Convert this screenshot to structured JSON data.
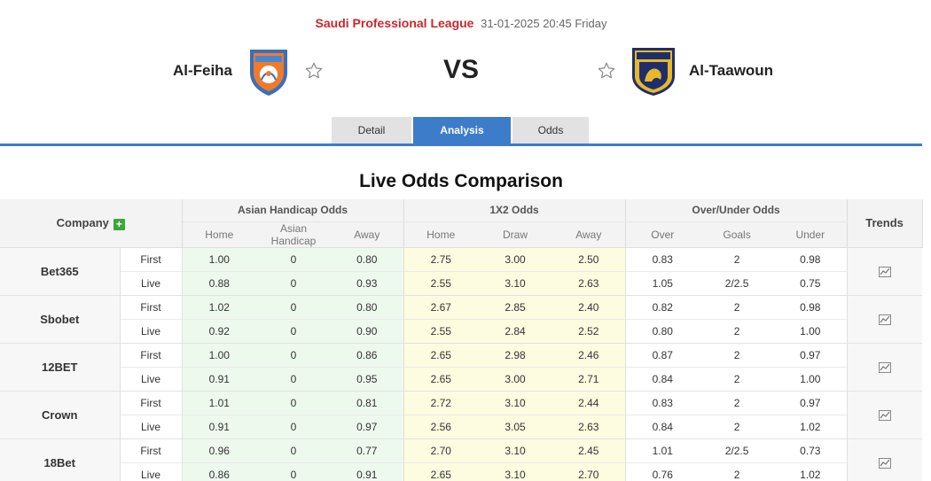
{
  "match": {
    "league": "Saudi Professional League",
    "datetime": "31-01-2025 20:45 Friday",
    "home_team": "Al-Feiha",
    "away_team": "Al-Taawoun",
    "vs": "VS"
  },
  "tabs": [
    {
      "label": "Detail",
      "active": false
    },
    {
      "label": "Analysis",
      "active": true
    },
    {
      "label": "Odds",
      "active": false
    }
  ],
  "section_title": "Live Odds Comparison",
  "table": {
    "company_header": "Company",
    "trends_header": "Trends",
    "groups": [
      "Asian Handicap Odds",
      "1X2 Odds",
      "Over/Under Odds"
    ],
    "subheaders": {
      "ah": [
        "Home",
        "Asian Handicap",
        "Away"
      ],
      "x12": [
        "Home",
        "Draw",
        "Away"
      ],
      "ou": [
        "Over",
        "Goals",
        "Under"
      ]
    },
    "companies": [
      {
        "name": "Bet365",
        "first": {
          "stage": "First",
          "ah": [
            "1.00",
            "0",
            "0.80"
          ],
          "x12": [
            "2.75",
            "3.00",
            "2.50"
          ],
          "ou": [
            "0.83",
            "2",
            "0.98"
          ]
        },
        "live": {
          "stage": "Live",
          "ah": [
            "0.88",
            "0",
            "0.93"
          ],
          "x12": [
            "2.55",
            "3.10",
            "2.63"
          ],
          "ou": [
            "1.05",
            "2/2.5",
            "0.75"
          ]
        }
      },
      {
        "name": "Sbobet",
        "first": {
          "stage": "First",
          "ah": [
            "1.02",
            "0",
            "0.80"
          ],
          "x12": [
            "2.67",
            "2.85",
            "2.40"
          ],
          "ou": [
            "0.82",
            "2",
            "0.98"
          ]
        },
        "live": {
          "stage": "Live",
          "ah": [
            "0.92",
            "0",
            "0.90"
          ],
          "x12": [
            "2.55",
            "2.84",
            "2.52"
          ],
          "ou": [
            "0.80",
            "2",
            "1.00"
          ]
        }
      },
      {
        "name": "12BET",
        "first": {
          "stage": "First",
          "ah": [
            "1.00",
            "0",
            "0.86"
          ],
          "x12": [
            "2.65",
            "2.98",
            "2.46"
          ],
          "ou": [
            "0.87",
            "2",
            "0.97"
          ]
        },
        "live": {
          "stage": "Live",
          "ah": [
            "0.91",
            "0",
            "0.95"
          ],
          "x12": [
            "2.65",
            "3.00",
            "2.71"
          ],
          "ou": [
            "0.84",
            "2",
            "1.00"
          ]
        }
      },
      {
        "name": "Crown",
        "first": {
          "stage": "First",
          "ah": [
            "1.01",
            "0",
            "0.81"
          ],
          "x12": [
            "2.72",
            "3.10",
            "2.44"
          ],
          "ou": [
            "0.83",
            "2",
            "0.97"
          ]
        },
        "live": {
          "stage": "Live",
          "ah": [
            "0.91",
            "0",
            "0.97"
          ],
          "x12": [
            "2.56",
            "3.05",
            "2.63"
          ],
          "ou": [
            "0.84",
            "2",
            "1.02"
          ]
        }
      },
      {
        "name": "18Bet",
        "first": {
          "stage": "First",
          "ah": [
            "0.96",
            "0",
            "0.77"
          ],
          "x12": [
            "2.70",
            "3.10",
            "2.45"
          ],
          "ou": [
            "1.01",
            "2/2.5",
            "0.73"
          ]
        },
        "live": {
          "stage": "Live",
          "ah": [
            "0.86",
            "0",
            "0.91"
          ],
          "x12": [
            "2.65",
            "3.10",
            "2.70"
          ],
          "ou": [
            "0.76",
            "2",
            "1.02"
          ]
        }
      }
    ]
  },
  "icons": {
    "favorite": "star-outline-icon",
    "add_company": "plus-icon",
    "trend": "trend-chart-icon"
  },
  "colors": {
    "league": "#c8282d",
    "accent": "#3d7cc9",
    "ah_bg": "#eef9ee",
    "x12_bg": "#fdfce0",
    "plus": "#3aa73a"
  }
}
